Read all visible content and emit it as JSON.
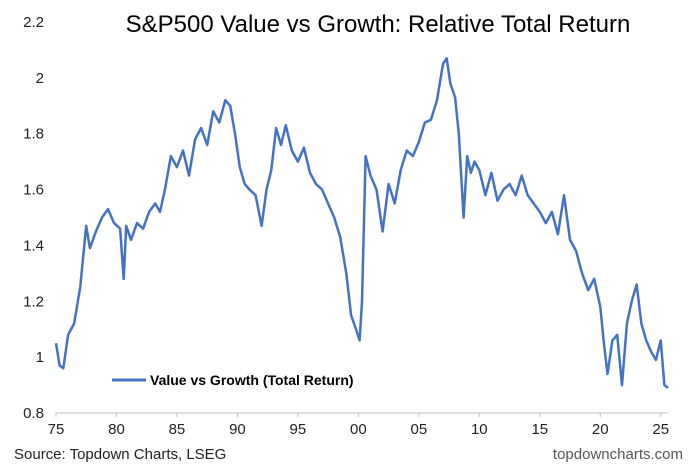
{
  "chart_data": {
    "type": "line",
    "title": "S&P500 Value vs Growth: Relative Total Return",
    "xlabel": "",
    "ylabel": "",
    "x_tick_labels": [
      "75",
      "80",
      "85",
      "90",
      "95",
      "00",
      "05",
      "10",
      "15",
      "20",
      "25"
    ],
    "x_tick_years": [
      1975,
      1980,
      1985,
      1990,
      1995,
      2000,
      2005,
      2010,
      2015,
      2020,
      2025
    ],
    "y_tick_labels": [
      "0.8",
      "1",
      "1.2",
      "1.4",
      "1.6",
      "1.8",
      "2",
      "2.2"
    ],
    "y_tick_values": [
      0.8,
      1.0,
      1.2,
      1.4,
      1.6,
      1.8,
      2.0,
      2.2
    ],
    "xlim": [
      1975,
      2025.6
    ],
    "ylim": [
      0.8,
      2.2
    ],
    "grid": false,
    "legend_position": "bottom-left",
    "series": [
      {
        "name": "Value vs Growth (Total Return)",
        "color": "#4472C4",
        "x": [
          1975.0,
          1975.3,
          1975.6,
          1976.0,
          1976.5,
          1977.0,
          1977.5,
          1977.8,
          1978.3,
          1978.8,
          1979.3,
          1979.8,
          1980.3,
          1980.6,
          1980.8,
          1981.2,
          1981.7,
          1982.2,
          1982.7,
          1983.2,
          1983.6,
          1984.0,
          1984.5,
          1985.0,
          1985.5,
          1986.0,
          1986.5,
          1987.0,
          1987.5,
          1988.0,
          1988.5,
          1989.0,
          1989.4,
          1989.8,
          1990.2,
          1990.6,
          1991.0,
          1991.5,
          1992.0,
          1992.4,
          1992.8,
          1993.2,
          1993.6,
          1994.0,
          1994.5,
          1995.0,
          1995.5,
          1996.0,
          1996.5,
          1997.0,
          1997.5,
          1998.0,
          1998.5,
          1999.0,
          1999.4,
          1999.8,
          2000.1,
          2000.3,
          2000.6,
          2001.0,
          2001.5,
          2002.0,
          2002.5,
          2003.0,
          2003.5,
          2004.0,
          2004.5,
          2005.0,
          2005.5,
          2006.0,
          2006.5,
          2007.0,
          2007.3,
          2007.6,
          2008.0,
          2008.3,
          2008.7,
          2009.0,
          2009.3,
          2009.6,
          2010.0,
          2010.5,
          2011.0,
          2011.5,
          2012.0,
          2012.5,
          2013.0,
          2013.5,
          2014.0,
          2014.5,
          2015.0,
          2015.5,
          2016.0,
          2016.5,
          2017.0,
          2017.5,
          2018.0,
          2018.5,
          2019.0,
          2019.5,
          2020.0,
          2020.3,
          2020.6,
          2021.0,
          2021.4,
          2021.8,
          2022.2,
          2022.6,
          2023.0,
          2023.4,
          2023.8,
          2024.2,
          2024.6,
          2025.0,
          2025.3,
          2025.6
        ],
        "values": [
          1.05,
          0.97,
          0.96,
          1.08,
          1.12,
          1.25,
          1.47,
          1.39,
          1.45,
          1.5,
          1.53,
          1.48,
          1.46,
          1.28,
          1.47,
          1.42,
          1.48,
          1.46,
          1.52,
          1.55,
          1.52,
          1.6,
          1.72,
          1.68,
          1.74,
          1.65,
          1.78,
          1.82,
          1.76,
          1.88,
          1.84,
          1.92,
          1.9,
          1.8,
          1.68,
          1.62,
          1.6,
          1.58,
          1.47,
          1.6,
          1.67,
          1.82,
          1.76,
          1.83,
          1.74,
          1.7,
          1.75,
          1.66,
          1.62,
          1.6,
          1.55,
          1.5,
          1.43,
          1.3,
          1.15,
          1.1,
          1.06,
          1.2,
          1.72,
          1.65,
          1.6,
          1.45,
          1.62,
          1.55,
          1.67,
          1.74,
          1.72,
          1.77,
          1.84,
          1.85,
          1.92,
          2.05,
          2.07,
          1.98,
          1.93,
          1.8,
          1.5,
          1.72,
          1.66,
          1.7,
          1.67,
          1.58,
          1.66,
          1.56,
          1.6,
          1.62,
          1.58,
          1.65,
          1.58,
          1.55,
          1.52,
          1.48,
          1.52,
          1.44,
          1.58,
          1.42,
          1.38,
          1.3,
          1.24,
          1.28,
          1.18,
          1.05,
          0.94,
          1.06,
          1.08,
          0.9,
          1.12,
          1.2,
          1.26,
          1.12,
          1.06,
          1.02,
          0.99,
          1.06,
          0.9,
          0.89
        ]
      }
    ]
  },
  "footer": {
    "source": "Source: Topdown Charts, LSEG",
    "website": "topdowncharts.com"
  }
}
